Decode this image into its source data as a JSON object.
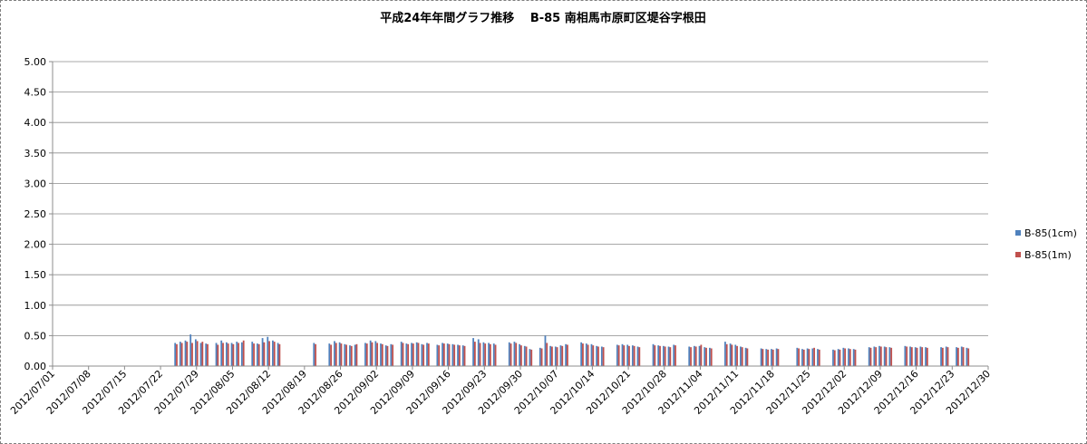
{
  "chart_data": {
    "type": "bar",
    "title": "平成24年年間グラフ推移　 B-85 南相馬市原町区堤谷字根田",
    "xlabel": "",
    "ylabel": "",
    "ylim": [
      0,
      5
    ],
    "yticks": [
      "0.00",
      "0.50",
      "1.00",
      "1.50",
      "2.00",
      "2.50",
      "3.00",
      "3.50",
      "4.00",
      "4.50",
      "5.00"
    ],
    "x_range": [
      "2012/07/01",
      "2012/12/30"
    ],
    "xticks": [
      "2012/07/01",
      "2012/07/08",
      "2012/07/15",
      "2012/07/22",
      "2012/07/29",
      "2012/08/05",
      "2012/08/12",
      "2012/08/19",
      "2012/08/26",
      "2012/09/02",
      "2012/09/09",
      "2012/09/16",
      "2012/09/23",
      "2012/09/30",
      "2012/10/07",
      "2012/10/14",
      "2012/10/21",
      "2012/10/28",
      "2012/11/04",
      "2012/11/11",
      "2012/11/18",
      "2012/11/25",
      "2012/12/02",
      "2012/12/09",
      "2012/12/16",
      "2012/12/23",
      "2012/12/30"
    ],
    "grid": "horizontal",
    "legend_position": "right",
    "colors": {
      "series1": "#4f81bd",
      "series2": "#c0504d"
    },
    "x": [
      "2012/07/25",
      "2012/07/26",
      "2012/07/27",
      "2012/07/28",
      "2012/07/29",
      "2012/07/30",
      "2012/07/31",
      "2012/08/02",
      "2012/08/03",
      "2012/08/04",
      "2012/08/05",
      "2012/08/06",
      "2012/08/07",
      "2012/08/09",
      "2012/08/10",
      "2012/08/11",
      "2012/08/12",
      "2012/08/13",
      "2012/08/14",
      "2012/08/21",
      "2012/08/24",
      "2012/08/25",
      "2012/08/26",
      "2012/08/27",
      "2012/08/28",
      "2012/08/29",
      "2012/08/31",
      "2012/09/01",
      "2012/09/02",
      "2012/09/03",
      "2012/09/04",
      "2012/09/05",
      "2012/09/07",
      "2012/09/08",
      "2012/09/09",
      "2012/09/10",
      "2012/09/11",
      "2012/09/12",
      "2012/09/14",
      "2012/09/15",
      "2012/09/16",
      "2012/09/17",
      "2012/09/18",
      "2012/09/19",
      "2012/09/21",
      "2012/09/22",
      "2012/09/23",
      "2012/09/24",
      "2012/09/25",
      "2012/09/28",
      "2012/09/29",
      "2012/09/30",
      "2012/10/01",
      "2012/10/02",
      "2012/10/04",
      "2012/10/05",
      "2012/10/06",
      "2012/10/07",
      "2012/10/08",
      "2012/10/09",
      "2012/10/12",
      "2012/10/13",
      "2012/10/14",
      "2012/10/15",
      "2012/10/16",
      "2012/10/19",
      "2012/10/20",
      "2012/10/21",
      "2012/10/22",
      "2012/10/23",
      "2012/10/26",
      "2012/10/27",
      "2012/10/28",
      "2012/10/29",
      "2012/10/30",
      "2012/11/02",
      "2012/11/03",
      "2012/11/04",
      "2012/11/05",
      "2012/11/06",
      "2012/11/09",
      "2012/11/10",
      "2012/11/11",
      "2012/11/12",
      "2012/11/13",
      "2012/11/16",
      "2012/11/17",
      "2012/11/18",
      "2012/11/19",
      "2012/11/23",
      "2012/11/24",
      "2012/11/25",
      "2012/11/26",
      "2012/11/27",
      "2012/11/30",
      "2012/12/01",
      "2012/12/02",
      "2012/12/03",
      "2012/12/04",
      "2012/12/07",
      "2012/12/08",
      "2012/12/09",
      "2012/12/10",
      "2012/12/11",
      "2012/12/14",
      "2012/12/15",
      "2012/12/16",
      "2012/12/17",
      "2012/12/18",
      "2012/12/21",
      "2012/12/22",
      "2012/12/24",
      "2012/12/25",
      "2012/12/26"
    ],
    "series": [
      {
        "name": "B-85(1cm)",
        "values": [
          0.38,
          0.4,
          0.42,
          0.52,
          0.44,
          0.38,
          0.37,
          0.38,
          0.42,
          0.39,
          0.38,
          0.4,
          0.39,
          0.4,
          0.37,
          0.46,
          0.48,
          0.42,
          0.38,
          0.38,
          0.37,
          0.41,
          0.39,
          0.36,
          0.34,
          0.35,
          0.38,
          0.42,
          0.41,
          0.37,
          0.34,
          0.36,
          0.4,
          0.37,
          0.38,
          0.39,
          0.36,
          0.38,
          0.35,
          0.38,
          0.37,
          0.36,
          0.35,
          0.34,
          0.46,
          0.44,
          0.39,
          0.38,
          0.37,
          0.39,
          0.4,
          0.36,
          0.33,
          0.28,
          0.3,
          0.5,
          0.33,
          0.32,
          0.34,
          0.36,
          0.39,
          0.37,
          0.36,
          0.33,
          0.32,
          0.35,
          0.36,
          0.35,
          0.34,
          0.32,
          0.36,
          0.34,
          0.33,
          0.32,
          0.35,
          0.32,
          0.33,
          0.33,
          0.31,
          0.3,
          0.4,
          0.37,
          0.35,
          0.32,
          0.3,
          0.29,
          0.28,
          0.28,
          0.29,
          0.3,
          0.28,
          0.29,
          0.29,
          0.28,
          0.27,
          0.28,
          0.3,
          0.29,
          0.28,
          0.31,
          0.32,
          0.33,
          0.32,
          0.31,
          0.33,
          0.32,
          0.31,
          0.32,
          0.31,
          0.31,
          0.32,
          0.31,
          0.32,
          0.3
        ]
      },
      {
        "name": "B-85(1m)",
        "values": [
          0.36,
          0.38,
          0.4,
          0.38,
          0.41,
          0.4,
          0.36,
          0.35,
          0.38,
          0.37,
          0.36,
          0.38,
          0.42,
          0.37,
          0.36,
          0.39,
          0.41,
          0.4,
          0.36,
          0.36,
          0.35,
          0.38,
          0.37,
          0.35,
          0.33,
          0.36,
          0.37,
          0.39,
          0.38,
          0.36,
          0.33,
          0.35,
          0.38,
          0.36,
          0.37,
          0.38,
          0.35,
          0.37,
          0.34,
          0.37,
          0.36,
          0.35,
          0.34,
          0.33,
          0.4,
          0.38,
          0.37,
          0.36,
          0.35,
          0.37,
          0.38,
          0.34,
          0.32,
          0.27,
          0.29,
          0.38,
          0.32,
          0.31,
          0.33,
          0.35,
          0.37,
          0.35,
          0.34,
          0.32,
          0.31,
          0.34,
          0.34,
          0.33,
          0.33,
          0.31,
          0.34,
          0.33,
          0.32,
          0.31,
          0.34,
          0.31,
          0.32,
          0.35,
          0.3,
          0.29,
          0.36,
          0.35,
          0.33,
          0.31,
          0.29,
          0.28,
          0.27,
          0.27,
          0.28,
          0.29,
          0.27,
          0.28,
          0.3,
          0.27,
          0.26,
          0.27,
          0.29,
          0.28,
          0.27,
          0.3,
          0.31,
          0.32,
          0.31,
          0.3,
          0.32,
          0.31,
          0.3,
          0.31,
          0.3,
          0.3,
          0.31,
          0.3,
          0.31,
          0.29
        ]
      }
    ]
  }
}
